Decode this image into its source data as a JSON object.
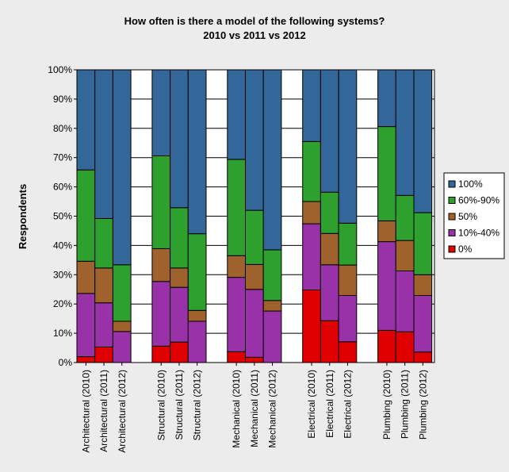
{
  "chart_data": {
    "type": "bar",
    "stacked": true,
    "normalized": true,
    "title": "How often is there a model of the following systems?",
    "subtitle": "2010 vs 2011 vs 2012",
    "ylabel": "Respondents",
    "xlabel": "",
    "ylim": [
      0,
      100
    ],
    "yticks": [
      "0%",
      "10%",
      "20%",
      "30%",
      "40%",
      "50%",
      "60%",
      "70%",
      "80%",
      "90%",
      "100%"
    ],
    "grid": true,
    "legend_position": "right",
    "groups": [
      [
        "Architectural (2010)",
        "Architectural (2011)",
        "Architectural (2012)"
      ],
      [
        "Structural (2010)",
        "Structural (2011)",
        "Structural (2012)"
      ],
      [
        "Mechanical (2010)",
        "Mechanical (2011)",
        "Mechanical (2012)"
      ],
      [
        "Electrical (2010)",
        "Electrical (2011)",
        "Electrical (2012)"
      ],
      [
        "Plumbing (2010)",
        "Plumbing (2011)",
        "Plumbing (2012)"
      ]
    ],
    "categories": [
      "Architectural (2010)",
      "Architectural (2011)",
      "Architectural (2012)",
      "Structural (2010)",
      "Structural (2011)",
      "Structural (2012)",
      "Mechanical (2010)",
      "Mechanical (2011)",
      "Mechanical (2012)",
      "Electrical (2010)",
      "Electrical (2011)",
      "Electrical (2012)",
      "Plumbing (2010)",
      "Plumbing (2011)",
      "Plumbing (2012)"
    ],
    "series": [
      {
        "name": "0%",
        "color": "#e00000",
        "values": [
          2,
          5.3,
          0,
          5.6,
          7,
          0,
          3.7,
          1.8,
          0,
          24.8,
          14.3,
          7.1,
          11,
          10.5,
          3.6
        ]
      },
      {
        "name": "10%-40%",
        "color": "#9932a8",
        "values": [
          21.6,
          15.1,
          10.6,
          22.1,
          18.7,
          14.1,
          25.4,
          23.2,
          17.6,
          22.6,
          19.1,
          15.8,
          30.3,
          20.8,
          19.3
        ]
      },
      {
        "name": "50%",
        "color": "#a0622d",
        "values": [
          11,
          11.9,
          3.5,
          11.2,
          6.6,
          3.7,
          7.4,
          8.5,
          3.6,
          7.6,
          10.7,
          10.4,
          7.1,
          10.4,
          7.1
        ]
      },
      {
        "name": "60%-90%",
        "color": "#2ea02e",
        "values": [
          31.2,
          16.9,
          19.3,
          31.7,
          20.6,
          26.2,
          32.9,
          18.5,
          17.3,
          20.5,
          14.1,
          14.3,
          32.2,
          15.4,
          21.2
        ]
      },
      {
        "name": "100%",
        "color": "#336699",
        "values": [
          34.2,
          50.8,
          66.6,
          29.4,
          47.1,
          56,
          30.6,
          48,
          61.5,
          24.5,
          41.8,
          52.4,
          19.4,
          42.9,
          48.8
        ]
      }
    ]
  }
}
